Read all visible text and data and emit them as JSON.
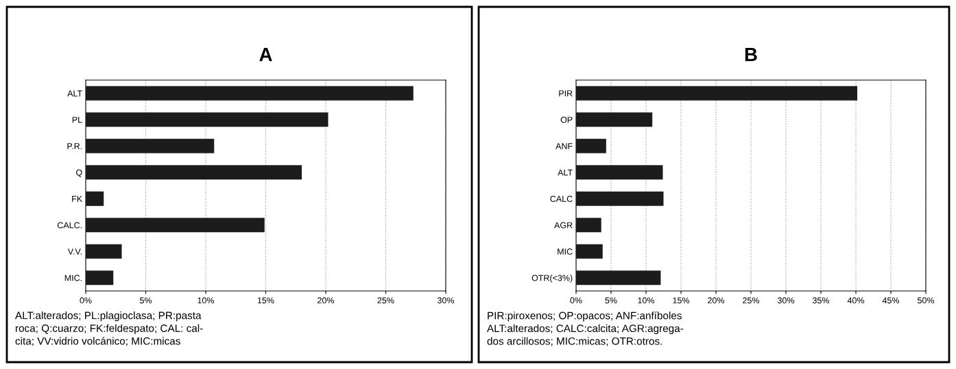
{
  "chart_data": [
    {
      "type": "bar",
      "orientation": "horizontal",
      "title": "A",
      "categories": [
        "ALT",
        "PL",
        "P.R.",
        "Q",
        "FK",
        "CALC.",
        "V.V.",
        "MIC."
      ],
      "values": [
        27.3,
        20.2,
        10.7,
        18.0,
        1.5,
        14.9,
        3.0,
        2.3
      ],
      "color": "#1c1c1c",
      "xlim": [
        0,
        30
      ],
      "xticks": [
        {
          "value": 0,
          "label": "0%"
        },
        {
          "value": 5,
          "label": "5%"
        },
        {
          "value": 10,
          "label": "10%"
        },
        {
          "value": 15,
          "label": "15%"
        },
        {
          "value": 20,
          "label": "20%"
        },
        {
          "value": 25,
          "label": "25%"
        },
        {
          "value": 30,
          "label": "30%"
        }
      ],
      "grid": "x",
      "annotations": [
        "ALT:alterados; PL:plagioclasa; PR:pasta\nroca; Q:cuarzo; FK:feldespato; CAL: cal-\ncita; VV:vidrio volcánico; MIC:micas"
      ]
    },
    {
      "type": "bar",
      "orientation": "horizontal",
      "title": "B",
      "categories": [
        "PIR",
        "OP",
        "ANF",
        "ALT",
        "CALC",
        "AGR",
        "MIC",
        "OTR(<3%)"
      ],
      "values": [
        40.2,
        10.9,
        4.3,
        12.4,
        12.5,
        3.6,
        3.8,
        12.1
      ],
      "color": "#1c1c1c",
      "xlim": [
        0,
        50
      ],
      "xticks": [
        {
          "value": 0,
          "label": "0%"
        },
        {
          "value": 5,
          "label": "5%"
        },
        {
          "value": 10,
          "label": "10%"
        },
        {
          "value": 15,
          "label": "15%"
        },
        {
          "value": 20,
          "label": "20%"
        },
        {
          "value": 25,
          "label": "25%"
        },
        {
          "value": 30,
          "label": "30%"
        },
        {
          "value": 35,
          "label": "35%"
        },
        {
          "value": 40,
          "label": "40%"
        },
        {
          "value": 45,
          "label": "45%"
        },
        {
          "value": 50,
          "label": "50%"
        }
      ],
      "grid": "x",
      "annotations": [
        "PIR:piroxenos; OP:opacos; ANF:anfíboles\nALT:alterados; CALC:calcita; AGR:agrega-\ndos arcillosos; MIC:micas; OTR:otros."
      ]
    }
  ]
}
